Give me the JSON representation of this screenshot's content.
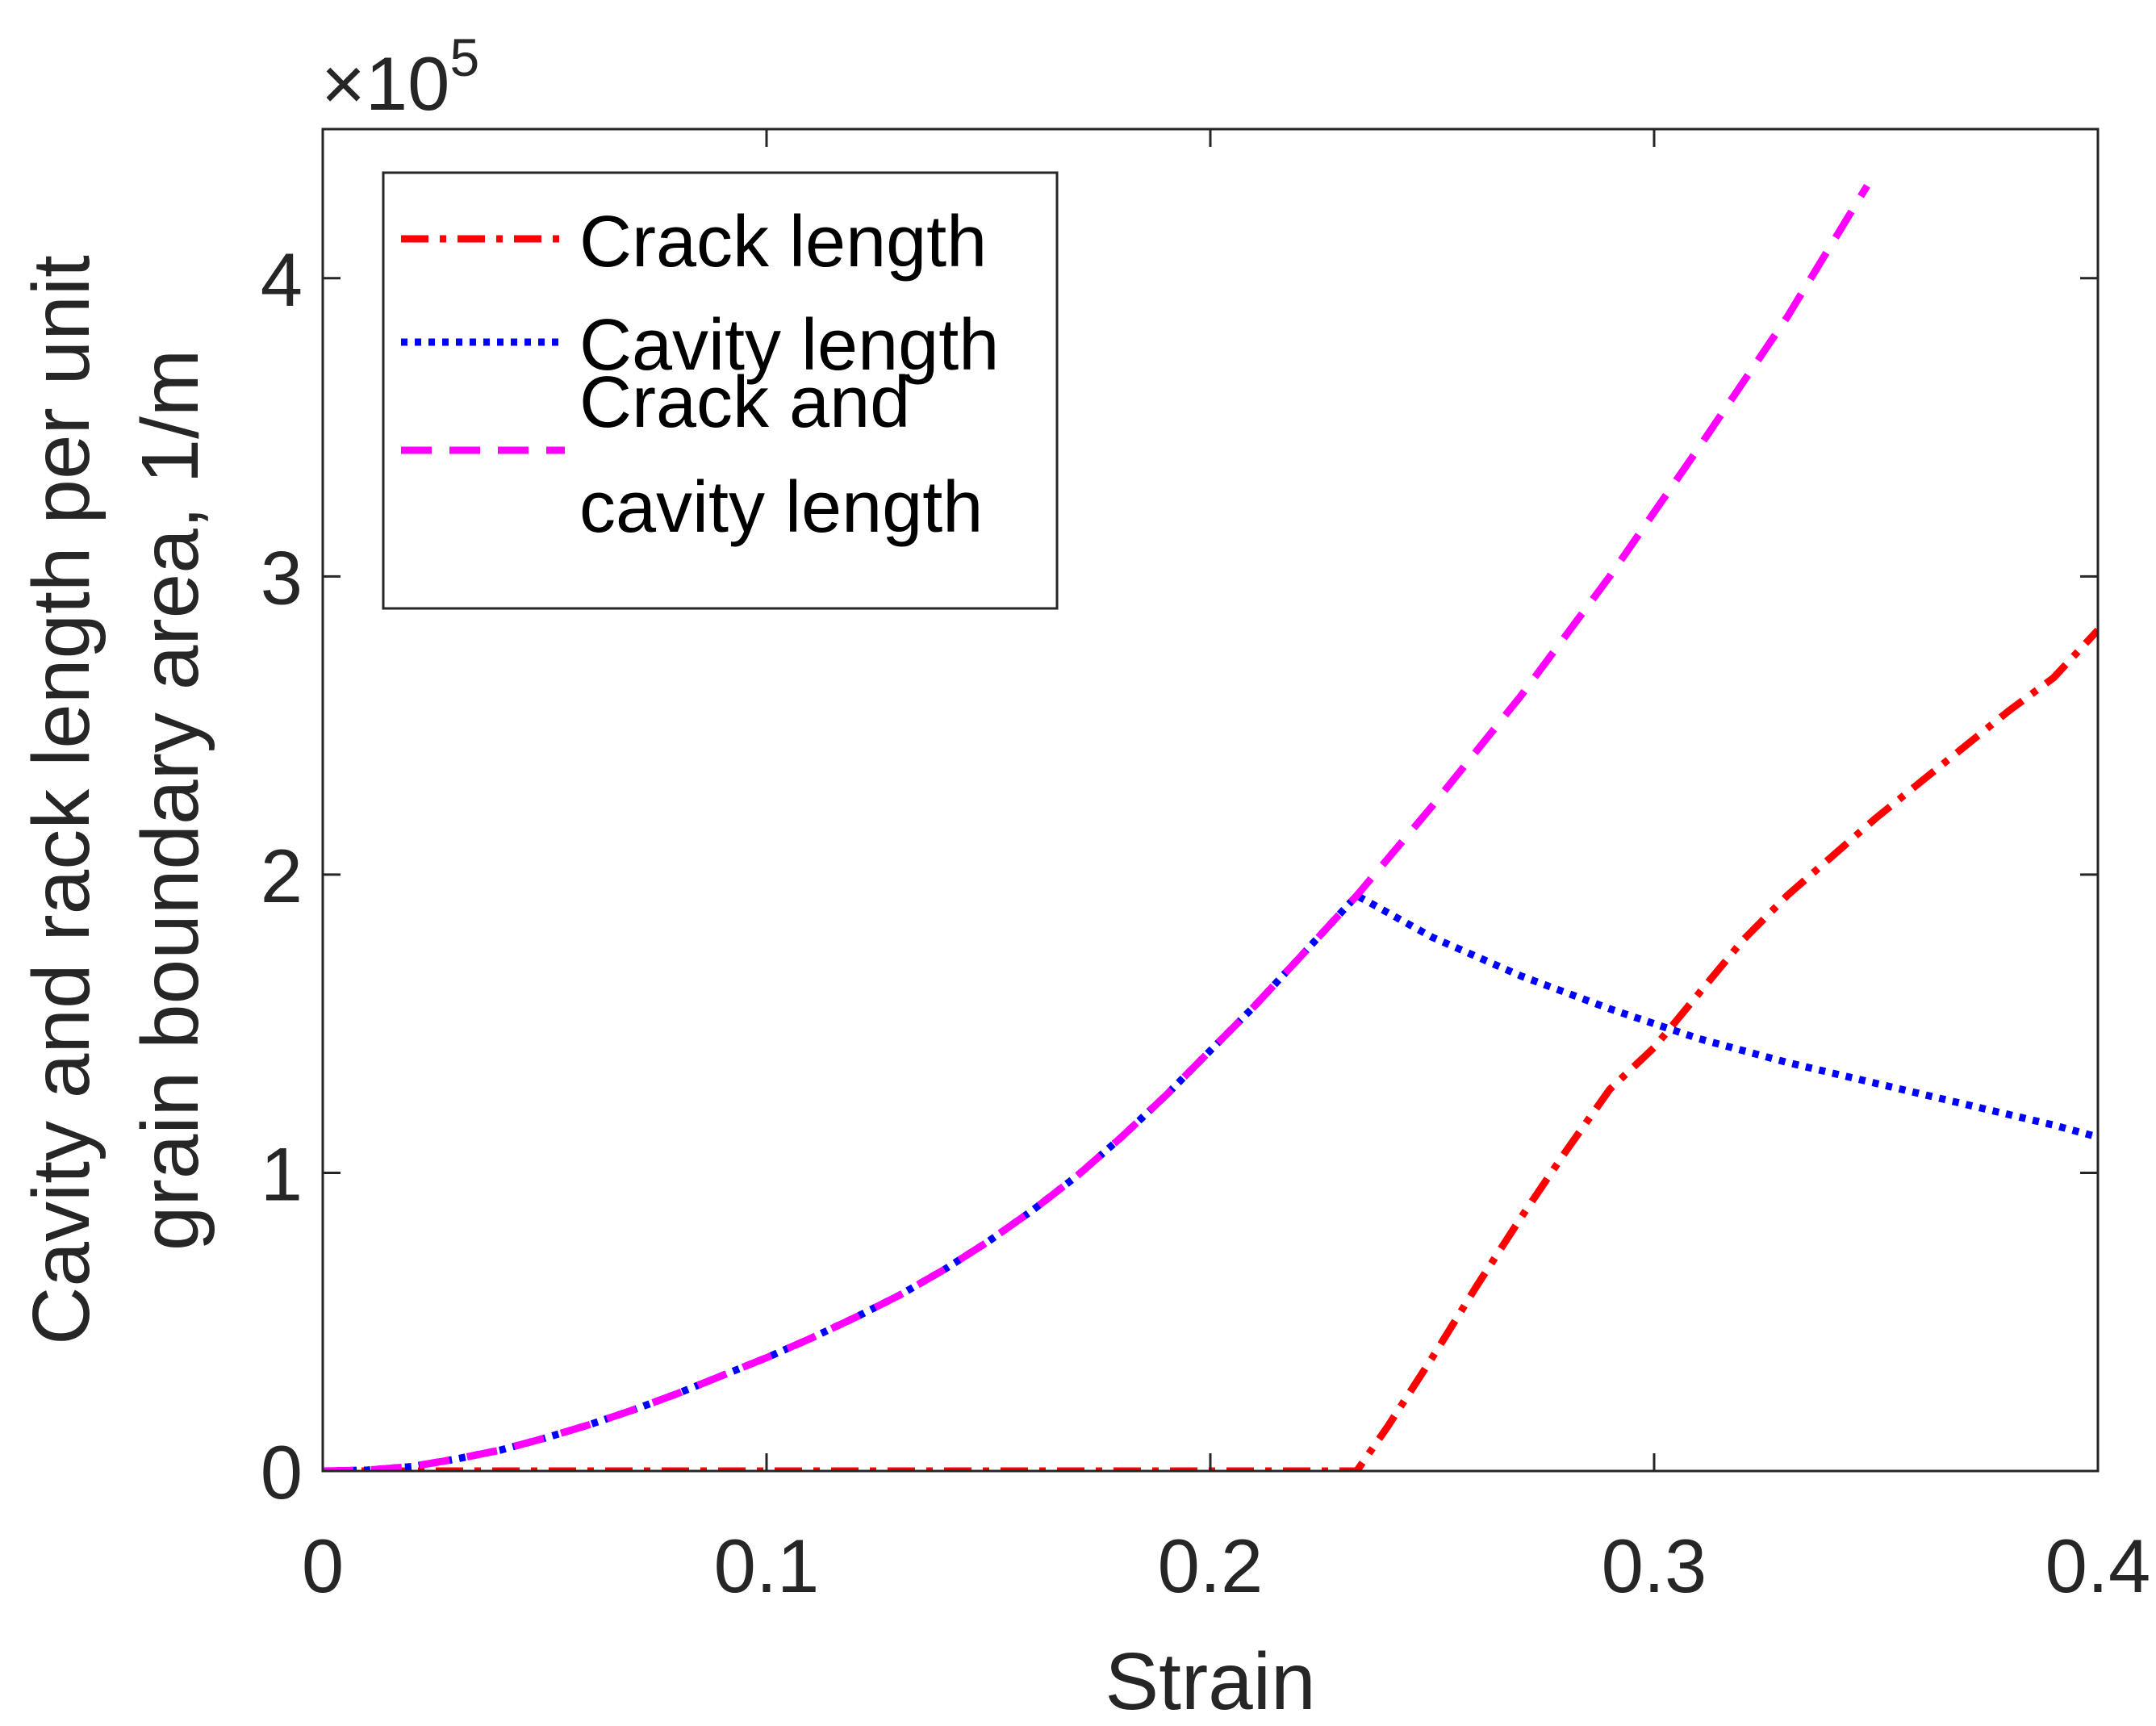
{
  "chart_data": {
    "type": "line",
    "title": "",
    "xlabel": "Strain",
    "ylabel": "Cavity and rack length per unit grain boundary area,  1/m",
    "ylabel_lines": [
      "Cavity and rack length per unit",
      "grain boundary area,  1/m"
    ],
    "xlim": [
      0,
      0.4
    ],
    "ylim": [
      0,
      4.5
    ],
    "y_scale_label": {
      "base": "×10",
      "exponent": "5"
    },
    "xticks": [
      0,
      0.1,
      0.2,
      0.3,
      0.4
    ],
    "xtick_labels": [
      "0",
      "0.1",
      "0.2",
      "0.3",
      "0.4"
    ],
    "yticks": [
      0,
      1,
      2,
      3,
      4
    ],
    "ytick_labels": [
      "0",
      "1",
      "2",
      "3",
      "4"
    ],
    "grid": false,
    "legend_position": "top-left",
    "series": [
      {
        "name": "Crack length",
        "legend_lines": [
          "Crack length"
        ],
        "color": "#ff0000",
        "style": "dash-dot",
        "x": [
          0,
          0.05,
          0.1,
          0.15,
          0.2,
          0.233,
          0.24,
          0.25,
          0.26,
          0.27,
          0.28,
          0.29,
          0.3,
          0.31,
          0.32,
          0.33,
          0.34,
          0.35,
          0.36,
          0.37,
          0.38,
          0.39,
          0.4
        ],
        "values": [
          0,
          0,
          0,
          0,
          0,
          0,
          0.15,
          0.38,
          0.62,
          0.85,
          1.07,
          1.28,
          1.42,
          1.6,
          1.78,
          1.93,
          2.06,
          2.19,
          2.31,
          2.43,
          2.55,
          2.66,
          2.82
        ]
      },
      {
        "name": "Cavity length",
        "legend_lines": [
          "Cavity length"
        ],
        "color": "#0000ff",
        "style": "dotted",
        "x": [
          0,
          0.01,
          0.02,
          0.03,
          0.04,
          0.05,
          0.06,
          0.07,
          0.08,
          0.09,
          0.1,
          0.11,
          0.12,
          0.13,
          0.14,
          0.15,
          0.16,
          0.17,
          0.18,
          0.19,
          0.2,
          0.21,
          0.22,
          0.233,
          0.25,
          0.27,
          0.29,
          0.31,
          0.33,
          0.35,
          0.37,
          0.39,
          0.4
        ],
        "values": [
          0,
          0.003,
          0.015,
          0.04,
          0.07,
          0.11,
          0.155,
          0.205,
          0.26,
          0.32,
          0.38,
          0.445,
          0.515,
          0.59,
          0.675,
          0.77,
          0.875,
          0.99,
          1.12,
          1.26,
          1.41,
          1.56,
          1.72,
          1.93,
          1.79,
          1.66,
          1.55,
          1.45,
          1.37,
          1.3,
          1.23,
          1.16,
          1.12
        ]
      },
      {
        "name": "Crack and cavity length",
        "legend_lines": [
          "Crack and",
          "cavity length"
        ],
        "color": "#ff00ff",
        "style": "dashed",
        "x": [
          0,
          0.01,
          0.02,
          0.03,
          0.04,
          0.05,
          0.06,
          0.07,
          0.08,
          0.09,
          0.1,
          0.11,
          0.12,
          0.13,
          0.14,
          0.15,
          0.16,
          0.17,
          0.18,
          0.19,
          0.2,
          0.21,
          0.22,
          0.233,
          0.25,
          0.27,
          0.29,
          0.31,
          0.33,
          0.348
        ],
        "values": [
          0,
          0.003,
          0.015,
          0.04,
          0.07,
          0.11,
          0.155,
          0.205,
          0.26,
          0.32,
          0.38,
          0.445,
          0.515,
          0.59,
          0.675,
          0.77,
          0.875,
          0.99,
          1.12,
          1.26,
          1.41,
          1.56,
          1.72,
          1.93,
          2.23,
          2.6,
          3.0,
          3.43,
          3.87,
          4.31
        ]
      }
    ]
  }
}
